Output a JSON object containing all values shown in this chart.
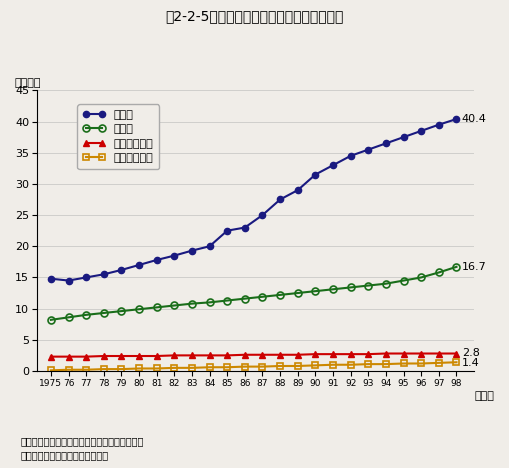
{
  "title": "第2-2-5図　我が国の組織別研究者数の推移",
  "ylabel": "（万人）",
  "xlabel_suffix": "（年）",
  "years": [
    1975,
    1976,
    1977,
    1978,
    1979,
    1980,
    1981,
    1982,
    1983,
    1984,
    1985,
    1986,
    1987,
    1988,
    1989,
    1990,
    1991,
    1992,
    1993,
    1994,
    1995,
    1996,
    1997,
    1998
  ],
  "kaisha": [
    14.8,
    14.5,
    15.0,
    15.5,
    16.2,
    17.0,
    17.8,
    18.5,
    19.3,
    20.0,
    22.5,
    23.0,
    25.0,
    27.5,
    29.0,
    31.5,
    33.0,
    34.5,
    35.5,
    36.5,
    37.5,
    38.5,
    39.5,
    40.4
  ],
  "daigaku": [
    8.2,
    8.6,
    9.0,
    9.3,
    9.6,
    9.9,
    10.2,
    10.5,
    10.8,
    11.0,
    11.3,
    11.6,
    11.9,
    12.2,
    12.5,
    12.8,
    13.1,
    13.4,
    13.7,
    14.0,
    14.5,
    15.0,
    15.8,
    16.7
  ],
  "seifu": [
    2.3,
    2.3,
    2.3,
    2.4,
    2.4,
    2.4,
    2.4,
    2.5,
    2.5,
    2.5,
    2.5,
    2.6,
    2.6,
    2.6,
    2.6,
    2.7,
    2.7,
    2.7,
    2.7,
    2.8,
    2.8,
    2.8,
    2.8,
    2.8
  ],
  "mineiei": [
    0.1,
    0.2,
    0.2,
    0.3,
    0.3,
    0.4,
    0.4,
    0.5,
    0.5,
    0.6,
    0.6,
    0.7,
    0.7,
    0.8,
    0.8,
    0.9,
    1.0,
    1.0,
    1.1,
    1.1,
    1.2,
    1.2,
    1.3,
    1.4
  ],
  "kaisha_color": "#1a1a80",
  "daigaku_color": "#1a6e1a",
  "seifu_color": "#cc0000",
  "mineiei_color": "#cc8800",
  "kaisha_label": "会社等",
  "daigaku_label": "大学等",
  "seifu_label": "政府研究機関",
  "mineiei_label": "民営研究機関",
  "ylim": [
    0,
    45
  ],
  "yticks": [
    0,
    5,
    10,
    15,
    20,
    25,
    30,
    35,
    40,
    45
  ],
  "annotation_kaisha": "40.4",
  "annotation_daigaku": "16.7",
  "annotation_seifu": "2.8",
  "annotation_mineiei": "1.4",
  "source_line1": "資料：総務庁統計局「科学技術研究調査報告」",
  "source_line2": "（参照：付属資料５．（１１））",
  "bg_color": "#f0ede8"
}
